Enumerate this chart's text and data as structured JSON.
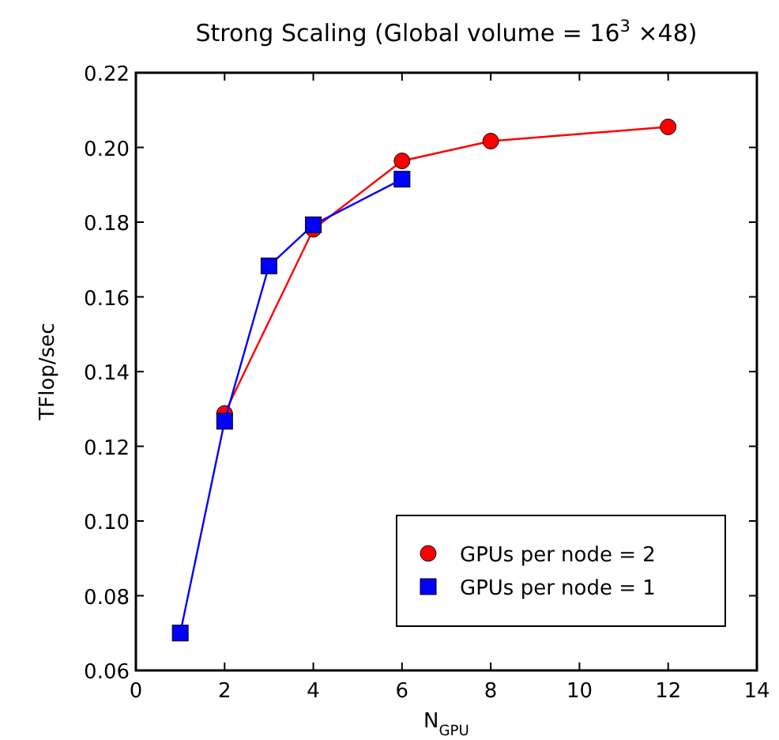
{
  "chart_data": {
    "type": "line",
    "title": "Strong Scaling (Global volume = 16$^{3}$ ×48)",
    "xlabel": "N$_{GPU}$",
    "ylabel": "TFlop/sec",
    "xlim": [
      0,
      14
    ],
    "xticks": [
      0,
      2,
      4,
      6,
      8,
      10,
      12,
      14
    ],
    "ylim": [
      0.06,
      0.22
    ],
    "yticks": [
      {
        "value": 0.06,
        "label": "0.06"
      },
      {
        "value": 0.08,
        "label": "0.08"
      },
      {
        "value": 0.1,
        "label": "0.10"
      },
      {
        "value": 0.12,
        "label": "0.12"
      },
      {
        "value": 0.14,
        "label": "0.14"
      },
      {
        "value": 0.16,
        "label": "0.16"
      },
      {
        "value": 0.18,
        "label": "0.18"
      },
      {
        "value": 0.2,
        "label": "0.20"
      },
      {
        "value": 0.22,
        "label": "0.22"
      }
    ],
    "grid": false,
    "legend": "bottom right",
    "line_style": "solid",
    "series": [
      {
        "name": "GPUs per node = 2",
        "color": "#ff0000",
        "marker": "circle",
        "x": [
          2,
          4,
          6,
          8,
          12
        ],
        "values": [
          0.1288,
          0.1781,
          0.1964,
          0.2017,
          0.2055
        ]
      },
      {
        "name": "GPUs per node = 1",
        "color": "#0000ff",
        "marker": "square",
        "x": [
          1,
          2,
          3,
          4,
          6
        ],
        "values": [
          0.07,
          0.1267,
          0.1683,
          0.1793,
          0.1915
        ]
      }
    ]
  }
}
